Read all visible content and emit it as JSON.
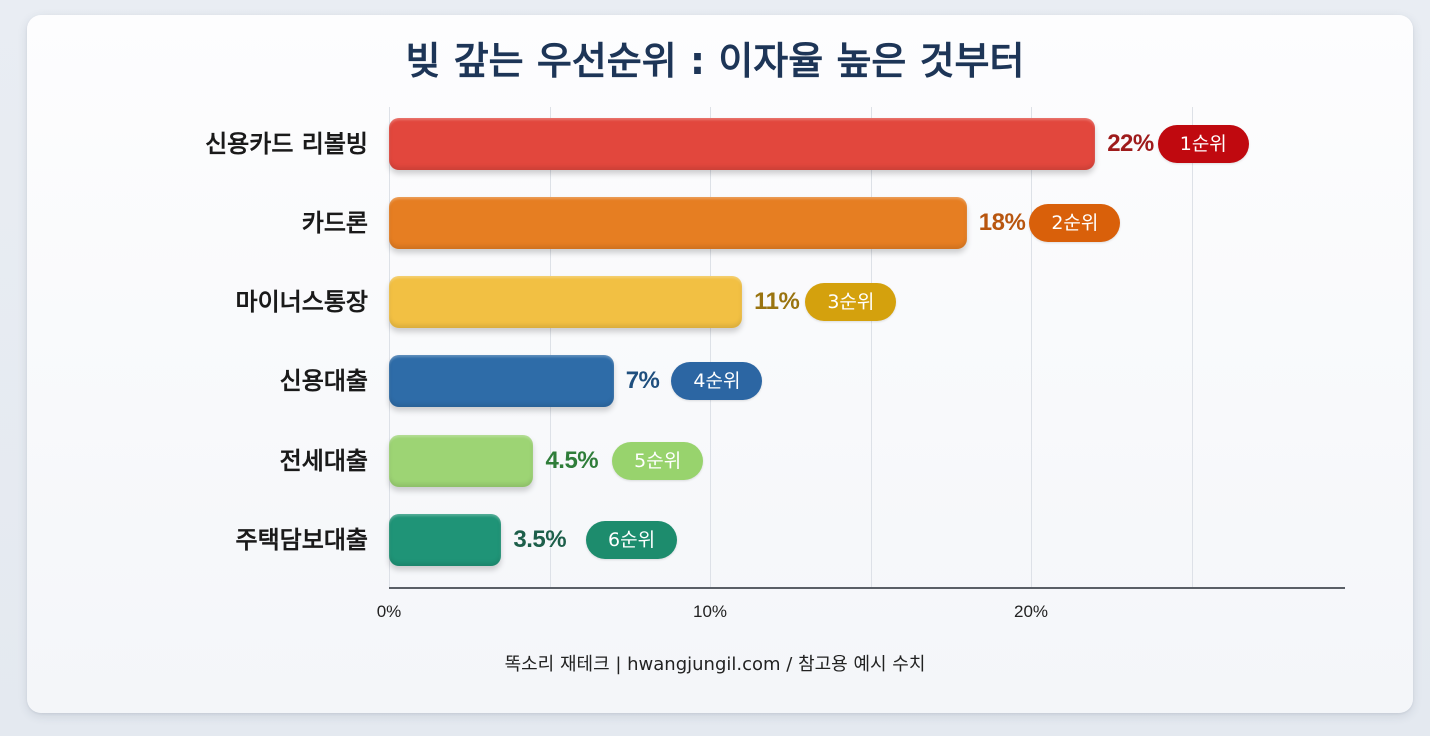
{
  "title": "빚 갚는 우선순위 : 이자율 높은 것부터",
  "footer": "똑소리 재테크 | hwangjungil.com / 참고용 예시 수치",
  "axis": {
    "ticks": [
      {
        "value": 0,
        "label": "0%"
      },
      {
        "value": 10,
        "label": "10%"
      },
      {
        "value": 20,
        "label": "20%"
      }
    ],
    "gridlines": [
      0,
      5,
      10,
      15,
      20,
      25
    ],
    "max": 29.8
  },
  "rows": [
    {
      "label": "신용카드 리볼빙",
      "value": 22,
      "value_label": "22%",
      "rank_label": "1순위",
      "bar_color": "#e2473d",
      "text_color": "#9e1b1b",
      "badge_color": "#c0090f"
    },
    {
      "label": "카드론",
      "value": 18,
      "value_label": "18%",
      "rank_label": "2순위",
      "bar_color": "#e67e22",
      "text_color": "#b8560f",
      "badge_color": "#d9600a"
    },
    {
      "label": "마이너스통장",
      "value": 11,
      "value_label": "11%",
      "rank_label": "3순위",
      "bar_color": "#f2c043",
      "text_color": "#9a7410",
      "badge_color": "#d4a10d"
    },
    {
      "label": "신용대출",
      "value": 7,
      "value_label": "7%",
      "rank_label": "4순위",
      "bar_color": "#2e6ca8",
      "text_color": "#1f4f7e",
      "badge_color": "#2c66a3"
    },
    {
      "label": "전세대출",
      "value": 4.5,
      "value_label": "4.5%",
      "rank_label": "5순위",
      "bar_color": "#9dd474",
      "text_color": "#2f7d3a",
      "badge_color": "#98d36d"
    },
    {
      "label": "주택담보대출",
      "value": 3.5,
      "value_label": "3.5%",
      "rank_label": "6순위",
      "bar_color": "#1f9477",
      "text_color": "#1d5f4a",
      "badge_color": "#1d8c6d"
    }
  ],
  "chart_data": {
    "type": "bar",
    "orientation": "horizontal",
    "title": "빚 갚는 우선순위 : 이자율 높은 것부터",
    "categories": [
      "신용카드 리볼빙",
      "카드론",
      "마이너스통장",
      "신용대출",
      "전세대출",
      "주택담보대출"
    ],
    "values": [
      22,
      18,
      11,
      7,
      4.5,
      3.5
    ],
    "data_labels": [
      "22%",
      "18%",
      "11%",
      "7%",
      "4.5%",
      "3.5%"
    ],
    "annotations": [
      "1순위",
      "2순위",
      "3순위",
      "4순위",
      "5순위",
      "6순위"
    ],
    "xlabel": "",
    "ylabel": "",
    "xlim": [
      0,
      30
    ],
    "x_tick_labels": [
      "0%",
      "10%",
      "20%"
    ],
    "grid": true,
    "grid_interval": 5,
    "legend": null,
    "caption": "똑소리 재테크 | hwangjungil.com / 참고용 예시 수치"
  }
}
